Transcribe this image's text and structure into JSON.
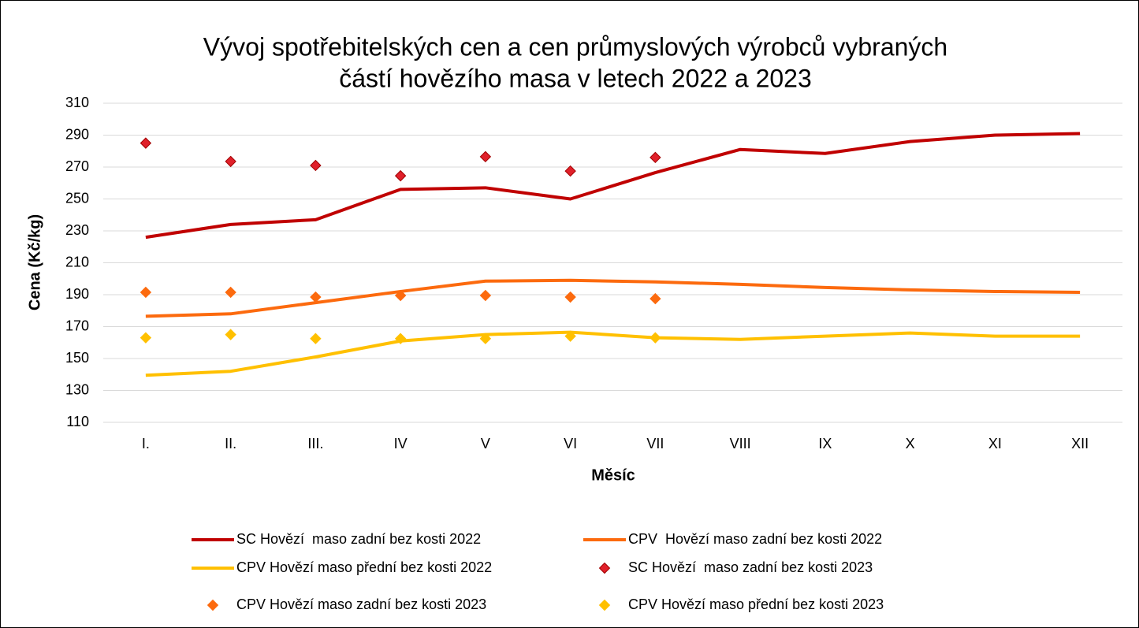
{
  "chart_data": {
    "type": "line",
    "title": [
      "Vývoj spotřebitelských cen a cen průmyslových výrobců vybraných",
      "částí hovězího masa v letech 2022 a 2023"
    ],
    "x_label": "Měsíc",
    "y_label": "Cena (Kč/kg)",
    "categories": [
      "I.",
      "II.",
      "III.",
      "IV",
      "V",
      "VI",
      "VII",
      "VIII",
      "IX",
      "X",
      "XI",
      "XII"
    ],
    "ylim": [
      110,
      310
    ],
    "yticks": [
      110,
      130,
      150,
      170,
      190,
      210,
      230,
      250,
      270,
      290,
      310
    ],
    "grid": true,
    "legend": "bottom",
    "series": [
      {
        "name": "SC Hovězí  maso zadní bez kosti 2022",
        "color": "#c00000",
        "mode": "line",
        "values": [
          226,
          234,
          237,
          256,
          257,
          250,
          266.5,
          281,
          278.5,
          286,
          290,
          291
        ]
      },
      {
        "name": "CPV  Hovězí maso zadní bez kosti 2022",
        "color": "#fc6a0e",
        "mode": "line",
        "values": [
          176.5,
          178,
          185,
          192,
          198.5,
          199,
          198,
          196.5,
          194.5,
          193,
          192,
          191.5
        ]
      },
      {
        "name": "CPV Hovězí maso přední bez kosti 2022",
        "color": "#ffc000",
        "mode": "line",
        "values": [
          139.5,
          142,
          151,
          161,
          165,
          166.5,
          163,
          162,
          164,
          166,
          164,
          164
        ]
      },
      {
        "name": "SC Hovězí  maso zadní bez kosti 2023",
        "color": "#e0202a",
        "mode": "markers",
        "values": [
          285,
          273.5,
          271,
          264.5,
          276.5,
          267.5,
          276,
          null,
          null,
          null,
          null,
          null
        ]
      },
      {
        "name": "CPV Hovězí maso zadní bez kosti 2023",
        "color": "#fc6a0e",
        "mode": "markers",
        "values": [
          191.5,
          191.5,
          188.5,
          189.5,
          189.5,
          188.5,
          187.5,
          null,
          null,
          null,
          null,
          null
        ]
      },
      {
        "name": "CPV Hovězí maso přední bez kosti 2023",
        "color": "#ffc000",
        "mode": "markers",
        "values": [
          163,
          165,
          162.5,
          162.5,
          162.5,
          164,
          163,
          null,
          null,
          null,
          null,
          null
        ]
      }
    ]
  }
}
